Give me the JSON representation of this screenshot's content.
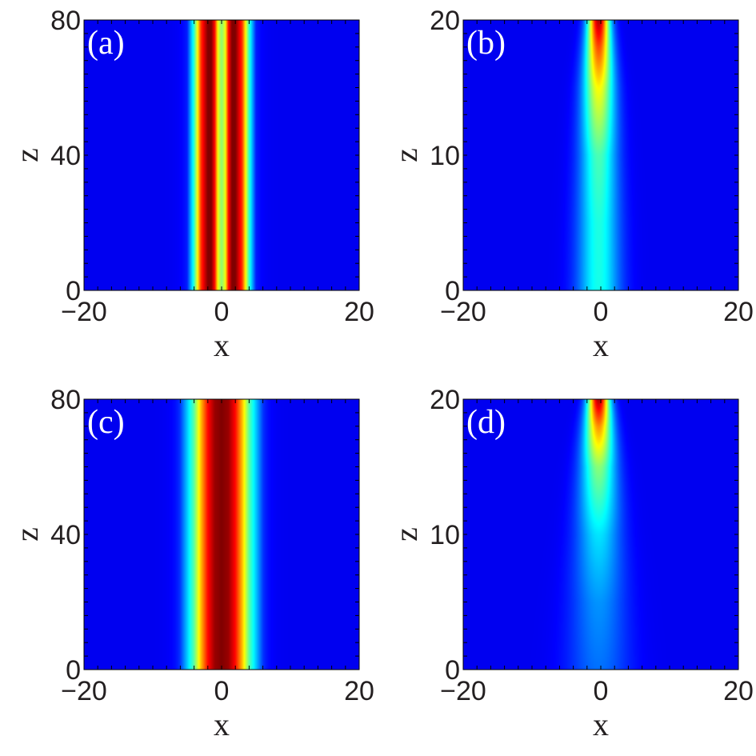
{
  "chart_data": [
    {
      "type": "heatmap",
      "panel": "(a)",
      "xlabel": "x",
      "ylabel": "z",
      "xlim": [
        -20,
        20
      ],
      "ylim": [
        0,
        80
      ],
      "xticks": [
        -20,
        0,
        20
      ],
      "xtick_labels": [
        "−20",
        "0",
        "20"
      ],
      "yticks": [
        0,
        40,
        80
      ],
      "ytick_labels": [
        "0",
        "40",
        "80"
      ],
      "colormap": "jet",
      "intensity_profile": {
        "description_values": "stationary two-hump beam, peaks near x = -1.5 and x = 1.5",
        "x": [
          -5,
          -4,
          -3,
          -2,
          -1.5,
          -1,
          -0.5,
          0,
          0.5,
          1,
          1.5,
          2,
          3,
          4,
          5
        ],
        "intensity": [
          0.05,
          0.35,
          0.8,
          1.0,
          1.0,
          0.85,
          0.55,
          0.45,
          0.55,
          0.85,
          1.0,
          1.0,
          0.8,
          0.35,
          0.05
        ]
      }
    },
    {
      "type": "heatmap",
      "panel": "(b)",
      "xlabel": "x",
      "ylabel": "z",
      "xlim": [
        -20,
        20
      ],
      "ylim": [
        0,
        20
      ],
      "xticks": [
        -20,
        0,
        20
      ],
      "xtick_labels": [
        "−20",
        "0",
        "20"
      ],
      "yticks": [
        0,
        10,
        20
      ],
      "ytick_labels": [
        "0",
        "10",
        "20"
      ],
      "colormap": "jet",
      "intensity_profile": {
        "description_values": "single beam centered near x = 0, peak intensity growing with z",
        "center_x": -0.3,
        "z": [
          0,
          5,
          10,
          15,
          18,
          20
        ],
        "peak_intensity": [
          0.32,
          0.33,
          0.38,
          0.58,
          0.78,
          0.95
        ],
        "width": [
          2.2,
          2.1,
          1.9,
          1.6,
          1.3,
          1.1
        ]
      }
    },
    {
      "type": "heatmap",
      "panel": "(c)",
      "xlabel": "x",
      "ylabel": "z",
      "xlim": [
        -20,
        20
      ],
      "ylim": [
        0,
        80
      ],
      "xticks": [
        -20,
        0,
        20
      ],
      "xtick_labels": [
        "−20",
        "0",
        "20"
      ],
      "yticks": [
        0,
        40,
        80
      ],
      "ytick_labels": [
        "0",
        "40",
        "80"
      ],
      "colormap": "jet",
      "intensity_profile": {
        "description_values": "stationary single-hump beam centered at x = 0",
        "x": [
          -6,
          -4,
          -3,
          -2,
          -1,
          0,
          1,
          2,
          3,
          4,
          6
        ],
        "intensity": [
          0.08,
          0.4,
          0.65,
          0.85,
          0.97,
          1.0,
          0.97,
          0.85,
          0.65,
          0.4,
          0.08
        ]
      }
    },
    {
      "type": "heatmap",
      "panel": "(d)",
      "xlabel": "x",
      "ylabel": "z",
      "xlim": [
        -20,
        20
      ],
      "ylim": [
        0,
        20
      ],
      "xticks": [
        -20,
        0,
        20
      ],
      "xtick_labels": [
        "−20",
        "0",
        "20"
      ],
      "yticks": [
        0,
        10,
        20
      ],
      "ytick_labels": [
        "0",
        "10",
        "20"
      ],
      "colormap": "jet",
      "intensity_profile": {
        "description_values": "single beam centered near x = 0, peak intensity growing strongly with z",
        "center_x": -0.3,
        "z": [
          0,
          5,
          10,
          15,
          18,
          20
        ],
        "peak_intensity": [
          0.14,
          0.18,
          0.27,
          0.45,
          0.7,
          0.95
        ],
        "width": [
          3.2,
          2.8,
          2.3,
          1.8,
          1.4,
          1.1
        ]
      }
    }
  ],
  "colors": {
    "background": "#00008f",
    "tick_text": "#231f20",
    "panel_label": "#ffffff"
  }
}
